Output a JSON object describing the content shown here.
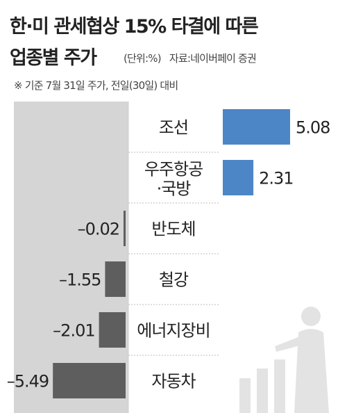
{
  "title": "한·미 관세협상 15% 타결에 따른",
  "subtitle": "업종별 주가",
  "unit": "(단위:%)",
  "source": "자료:네이버페이 증권",
  "note": "※ 기준 7월 31일 주가, 전일(30일) 대비",
  "colors": {
    "positive": "#4d86c6",
    "negative": "#5e5e5e",
    "left_panel": "#d5d5d5",
    "category_panel": "#ffffff",
    "right_panel": "#ffffff",
    "icon": "#e3e3e3"
  },
  "chart_data": {
    "type": "bar",
    "orientation": "horizontal",
    "categories": [
      "조선",
      "우주항공·국방",
      "반도체",
      "철강",
      "에너지장비",
      "자동차"
    ],
    "values": [
      5.08,
      2.31,
      -0.02,
      -1.55,
      -2.01,
      -5.49
    ],
    "value_labels": [
      "5.08",
      "2.31",
      "–0.02",
      "–1.55",
      "–2.01",
      "–5.49"
    ],
    "unit": "%"
  }
}
